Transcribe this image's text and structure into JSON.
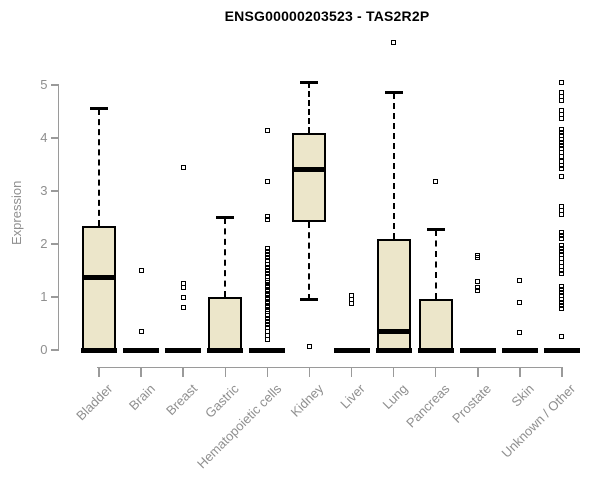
{
  "title": "ENSG00000203523 - TAS2R2P",
  "chart_data": {
    "type": "boxplot",
    "title": "ENSG00000203523 - TAS2R2P",
    "xlabel": "",
    "ylabel": "Expression",
    "ylim": [
      0,
      5
    ],
    "yticks": [
      0,
      1,
      2,
      3,
      4,
      5
    ],
    "grid": false,
    "legend": false,
    "box_fill_color": "#ece6ca",
    "box_border_color": "#000000",
    "axis_color": "#9a9a9a",
    "label_color": "#8f8f8f",
    "categories": [
      "Bladder",
      "Brain",
      "Breast",
      "Gastric",
      "Hematopoietic cells",
      "Kidney",
      "Liver",
      "Lung",
      "Pancreas",
      "Prostate",
      "Skin",
      "Unknown / Other"
    ],
    "series": [
      {
        "category": "Bladder",
        "low": 0,
        "q1": 0,
        "median": 1.37,
        "q3": 2.34,
        "high": 4.55,
        "outliers": []
      },
      {
        "category": "Brain",
        "low": 0,
        "q1": 0,
        "median": 0,
        "q3": 0,
        "high": 0,
        "outliers": [
          1.5,
          0.35
        ]
      },
      {
        "category": "Breast",
        "low": 0,
        "q1": 0,
        "median": 0,
        "q3": 0,
        "high": 0,
        "outliers": [
          3.45,
          1.25,
          1.17,
          1.0,
          0.8
        ]
      },
      {
        "category": "Gastric",
        "low": 0,
        "q1": 0,
        "median": 0,
        "q3": 1.0,
        "high": 2.5,
        "outliers": []
      },
      {
        "category": "Hematopoietic cells",
        "low": 0,
        "q1": 0,
        "median": 0,
        "q3": 0,
        "high": 0,
        "outliers": [
          4.15,
          3.17,
          2.52,
          2.46,
          1.92,
          1.86,
          1.8,
          1.74,
          1.68,
          1.62,
          1.56,
          1.5,
          1.44,
          1.38,
          1.32,
          1.27,
          1.22,
          1.17,
          1.12,
          1.07,
          1.02,
          0.97,
          0.92,
          0.87,
          0.82,
          0.77,
          0.72,
          0.66,
          0.6,
          0.54,
          0.48,
          0.42,
          0.35,
          0.28,
          0.2
        ]
      },
      {
        "category": "Kidney",
        "low": 0.95,
        "q1": 2.42,
        "median": 3.4,
        "q3": 4.1,
        "high": 5.05,
        "outliers": [
          0.07
        ]
      },
      {
        "category": "Liver",
        "low": 0,
        "q1": 0,
        "median": 0,
        "q3": 0,
        "high": 0,
        "outliers": [
          1.02,
          0.95,
          0.88
        ]
      },
      {
        "category": "Lung",
        "low": 0,
        "q1": 0,
        "median": 0.35,
        "q3": 2.1,
        "high": 4.85,
        "outliers": [
          5.8
        ]
      },
      {
        "category": "Pancreas",
        "low": 0,
        "q1": 0,
        "median": 0,
        "q3": 0.97,
        "high": 2.27,
        "outliers": [
          3.18
        ]
      },
      {
        "category": "Prostate",
        "low": 0,
        "q1": 0,
        "median": 0,
        "q3": 0,
        "high": 0,
        "outliers": [
          1.78,
          1.74,
          1.3,
          1.17,
          1.12
        ]
      },
      {
        "category": "Skin",
        "low": 0,
        "q1": 0,
        "median": 0,
        "q3": 0,
        "high": 0,
        "outliers": [
          1.32,
          0.9,
          0.33
        ]
      },
      {
        "category": "Unknown / Other",
        "low": 0,
        "q1": 0,
        "median": 0,
        "q3": 0,
        "high": 0,
        "outliers": [
          5.05,
          4.85,
          4.78,
          4.7,
          4.52,
          4.44,
          4.36,
          4.16,
          4.1,
          4.04,
          3.98,
          3.92,
          3.86,
          3.8,
          3.73,
          3.66,
          3.55,
          3.48,
          3.42,
          3.27,
          2.7,
          2.63,
          2.56,
          2.22,
          2.16,
          2.1,
          1.98,
          1.92,
          1.86,
          1.8,
          1.73,
          1.66,
          1.58,
          1.5,
          1.44,
          1.2,
          1.14,
          1.08,
          1.02,
          0.96,
          0.9,
          0.84,
          0.78,
          0.25
        ]
      }
    ]
  }
}
